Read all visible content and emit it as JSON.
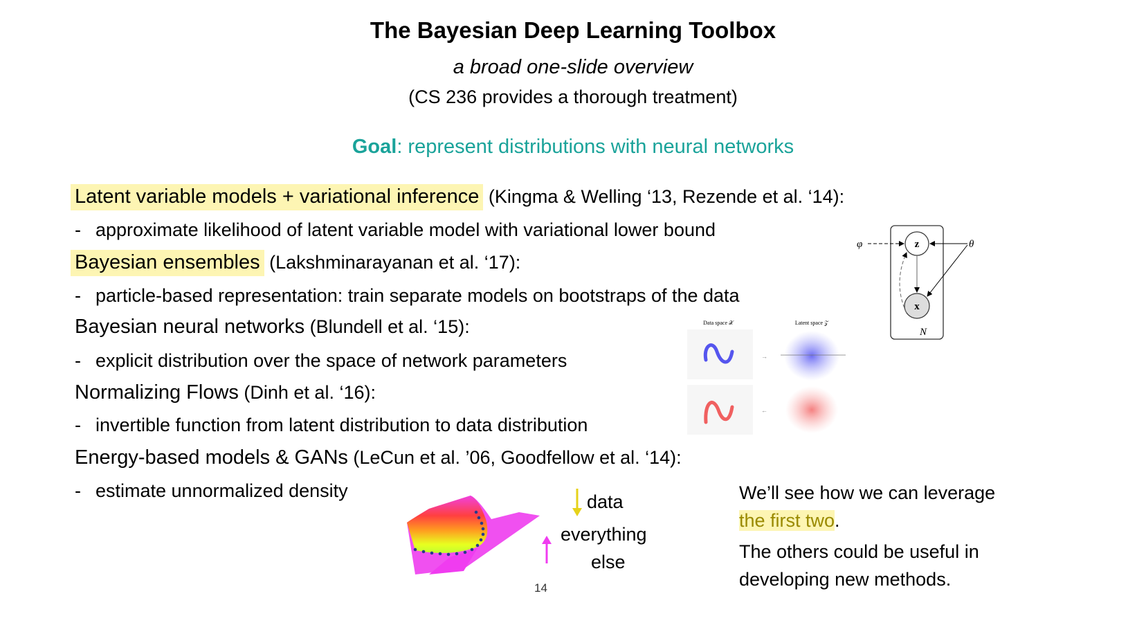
{
  "title": "The Bayesian Deep Learning Toolbox",
  "subtitle": "a broad one-slide overview",
  "note": "(CS 236 provides a thorough treatment)",
  "goal": {
    "label": "Goal",
    "text": ": represent distributions with neural networks"
  },
  "items": [
    {
      "heading": "Latent variable models + variational inference",
      "cite": " (Kingma & Welling ‘13, Rezende et al. ‘14):",
      "bullet": "approximate likelihood of latent variable model with variational lower bound",
      "highlighted": true
    },
    {
      "heading": "Bayesian ensembles",
      "cite": " (Lakshminarayanan et al. ‘17):",
      "bullet": "particle-based representation: train separate models on bootstraps of the data",
      "highlighted": true
    },
    {
      "heading": "Bayesian neural networks",
      "cite": " (Blundell et al. ‘15):",
      "bullet": "explicit distribution over the space of network parameters",
      "highlighted": false
    },
    {
      "heading": "Normalizing Flows",
      "cite": " (Dinh et al. ‘16):",
      "bullet": "invertible function from latent distribution to data distribution",
      "highlighted": false
    },
    {
      "heading": "Energy-based models & GANs",
      "cite": " (LeCun et al. ’06, Goodfellow et al. ‘14):",
      "bullet": "estimate unnormalized density",
      "highlighted": false
    }
  ],
  "bullet_marker": "-",
  "graphical_model": {
    "phi": "φ",
    "theta": "θ",
    "z": "z",
    "x": "x",
    "plate": "N"
  },
  "flow_figure": {
    "data_label": "Data space 𝒳",
    "latent_label": "Latent space 𝒵"
  },
  "energy_legend": {
    "down": "data",
    "up_line1": "everything",
    "up_line2": "else",
    "down_color": "#e6d21a",
    "up_color": "#f03cf0"
  },
  "closing": {
    "line1": "We’ll see how we can leverage",
    "highlight": "the first two",
    "after_highlight": ".",
    "line3": "The others could be useful in",
    "line4": "developing new methods."
  },
  "page_number": "14",
  "colors": {
    "goal": "#1aa39a",
    "highlight": "#fdf5b3"
  }
}
